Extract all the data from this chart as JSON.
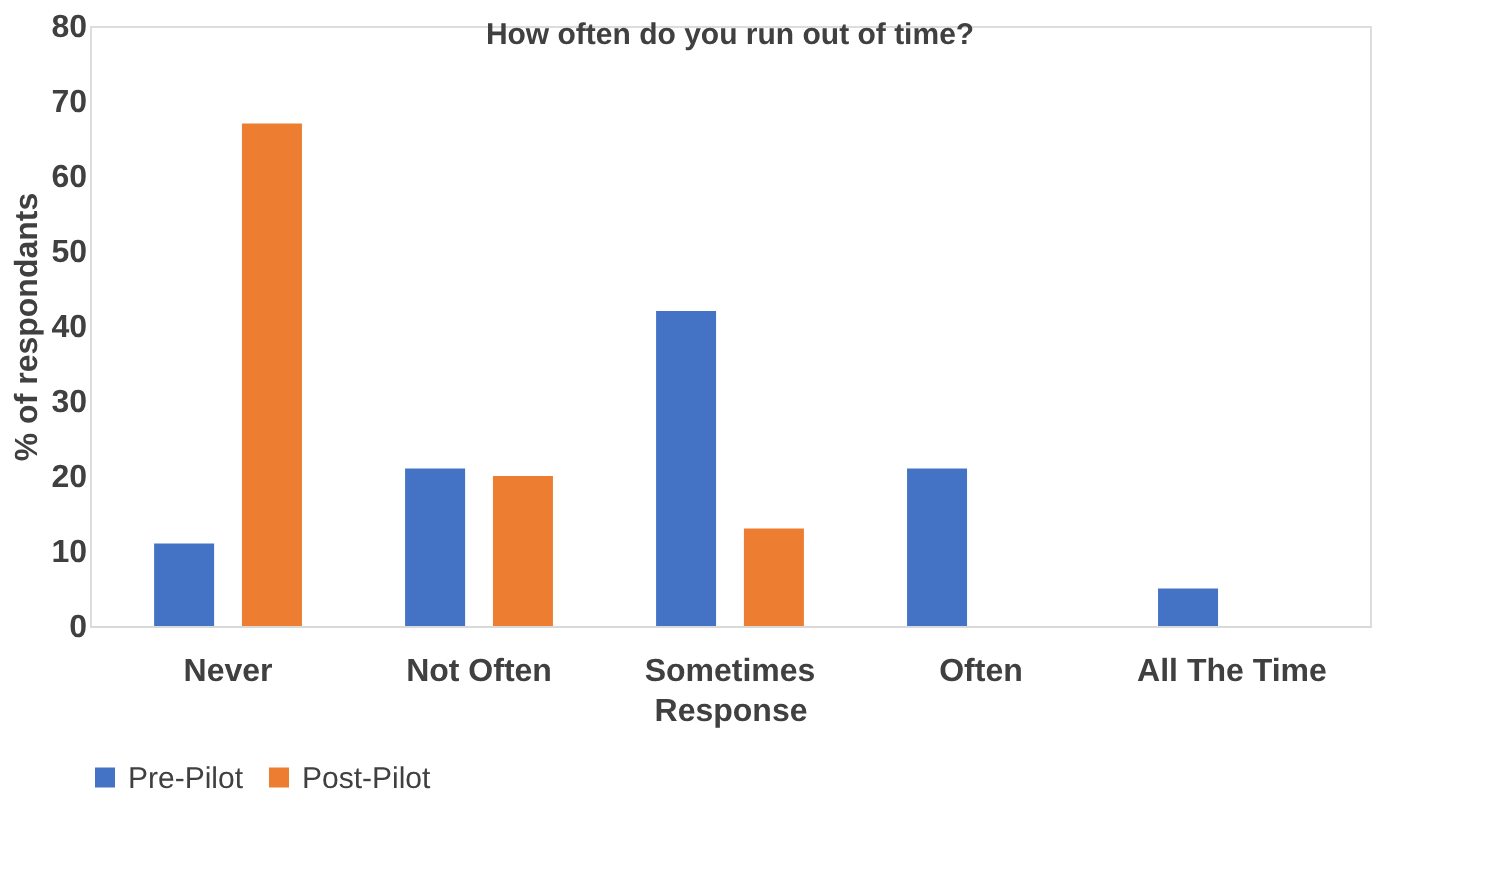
{
  "chart_data": {
    "type": "bar",
    "title": "How often do you run out of time?",
    "xlabel": "Response",
    "ylabel": "% of respondants",
    "categories": [
      "Never",
      "Not Often",
      "Sometimes",
      "Often",
      "All The Time"
    ],
    "series": [
      {
        "name": "Pre-Pilot",
        "color": "#4472c4",
        "values": [
          11,
          21,
          42,
          21,
          5
        ]
      },
      {
        "name": "Post-Pilot",
        "color": "#ed7d31",
        "values": [
          67,
          20,
          13,
          null,
          null
        ]
      }
    ],
    "ylim": [
      0,
      80
    ],
    "yticks": [
      0,
      10,
      20,
      30,
      40,
      50,
      60,
      70,
      80
    ],
    "grid": false,
    "legend": "bottom"
  }
}
